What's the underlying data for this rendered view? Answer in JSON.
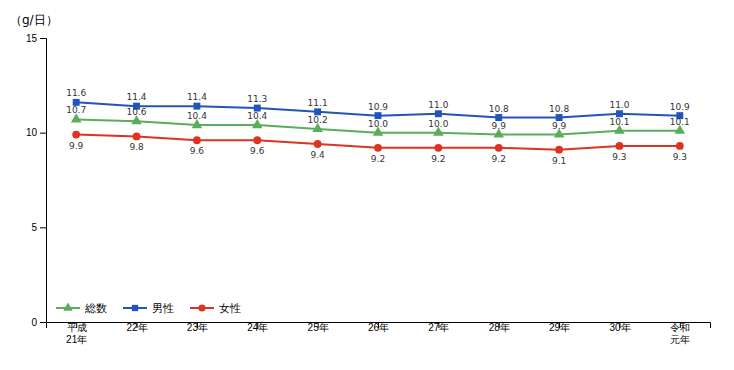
{
  "chart_data": {
    "type": "line",
    "ylabel": "（g/日）",
    "categories": [
      "平成\n21年",
      "22年",
      "23年",
      "24年",
      "25年",
      "26年",
      "27年",
      "28年",
      "29年",
      "30年",
      "令和\n元年"
    ],
    "series": [
      {
        "name": "総数",
        "color": "#5aad5a",
        "marker": "triangle",
        "values": [
          10.7,
          10.6,
          10.4,
          10.4,
          10.2,
          10.0,
          10.0,
          9.9,
          9.9,
          10.1,
          10.1
        ],
        "value_labels": [
          "10.7",
          "10.6",
          "10.4",
          "10.4",
          "10.2",
          "10.0",
          "10.0",
          "9.9",
          "9.9",
          "10.1",
          "10.1"
        ]
      },
      {
        "name": "男性",
        "color": "#2255bb",
        "marker": "square",
        "values": [
          11.6,
          11.4,
          11.4,
          11.3,
          11.1,
          10.9,
          11.0,
          10.8,
          10.8,
          11.0,
          10.9
        ],
        "value_labels": [
          "11.6",
          "11.4",
          "11.4",
          "11.3",
          "11.1",
          "10.9",
          "11.0",
          "10.8",
          "10.8",
          "11.0",
          "10.9"
        ]
      },
      {
        "name": "女性",
        "color": "#dd3322",
        "marker": "circle",
        "values": [
          9.9,
          9.8,
          9.6,
          9.6,
          9.4,
          9.2,
          9.2,
          9.2,
          9.1,
          9.3,
          9.3
        ],
        "value_labels": [
          "9.9",
          "9.8",
          "9.6",
          "9.6",
          "9.4",
          "9.2",
          "9.2",
          "9.2",
          "9.1",
          "9.3",
          "9.3"
        ]
      }
    ],
    "ylim": [
      0,
      15
    ],
    "yticks": [
      0,
      5,
      10,
      15
    ],
    "grid": false,
    "legend": "lower left",
    "data_labels": true
  }
}
